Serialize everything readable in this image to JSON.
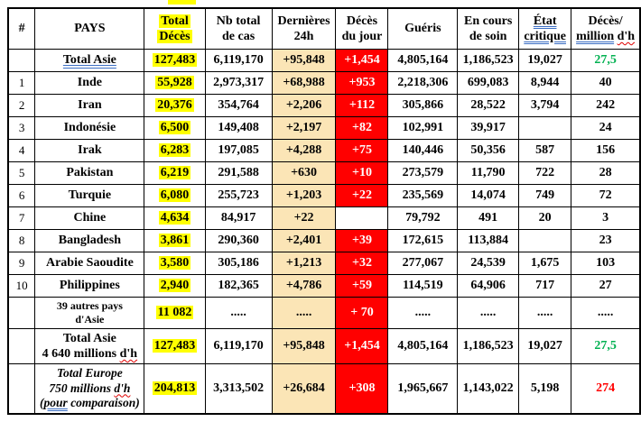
{
  "colors": {
    "highlight_yellow": "#FFFF00",
    "last24h_cell_cream": "#FBE5B6",
    "deaths_today_cell_red": "#FF0000",
    "deaths_today_text": "#FFFFFF",
    "green_text": "#00B050",
    "red_text": "#FF0000",
    "grammar_underline_blue": "#3C6FC4",
    "spellcheck_underline_red": "#E00000",
    "border": "#000000",
    "background": "#FFFFFF"
  },
  "artifact": {
    "description": "small yellow highlight fragment cropped above table top border",
    "color": "#FFFF00"
  },
  "table": {
    "columns": [
      {
        "key": "num",
        "header": [
          [
            {
              "t": "#"
            }
          ]
        ]
      },
      {
        "key": "pays",
        "header": [
          [
            {
              "t": "PAYS"
            }
          ]
        ]
      },
      {
        "key": "total",
        "header": [
          [
            {
              "t": "Total",
              "hl": true
            }
          ],
          [
            {
              "t": "Décès",
              "hl": true
            }
          ]
        ]
      },
      {
        "key": "cas",
        "header": [
          [
            {
              "t": "Nb total"
            }
          ],
          [
            {
              "t": "de cas"
            }
          ]
        ]
      },
      {
        "key": "h24",
        "header": [
          [
            {
              "t": "Dernières"
            }
          ],
          [
            {
              "t": "24h"
            }
          ]
        ]
      },
      {
        "key": "jour",
        "header": [
          [
            {
              "t": "Décès"
            }
          ],
          [
            {
              "t": "du jour"
            }
          ]
        ]
      },
      {
        "key": "gueris",
        "header": [
          [
            {
              "t": "Guéris"
            }
          ]
        ]
      },
      {
        "key": "soin",
        "header": [
          [
            {
              "t": "En cours"
            }
          ],
          [
            {
              "t": "de soin"
            }
          ]
        ]
      },
      {
        "key": "crit",
        "header": [
          [
            {
              "t": "État",
              "m": "blue"
            }
          ],
          [
            {
              "t": "critique",
              "m": "blue"
            }
          ]
        ]
      },
      {
        "key": "pm",
        "header": [
          [
            {
              "t": "Décès/"
            }
          ],
          [
            {
              "t": "million",
              "m": "blue"
            },
            {
              "t": " "
            },
            {
              "t": "d'h",
              "m": "red"
            }
          ]
        ]
      }
    ],
    "rows": [
      {
        "kind": "summary",
        "num": "",
        "pays": [
          [
            {
              "t": "Total Asie",
              "m": "blue"
            }
          ]
        ],
        "total": "127,483",
        "cas": "6,119,170",
        "h24": "+95,848",
        "jour": "+1,454",
        "jour_red": true,
        "gueris": "4,805,164",
        "soin": "1,186,523",
        "crit": "19,027",
        "pm": "27,5",
        "pm_color": "green"
      },
      {
        "kind": "country",
        "num": "1",
        "pays": [
          [
            {
              "t": "Inde"
            }
          ]
        ],
        "total": "55,928",
        "cas": "2,973,317",
        "h24": "+68,988",
        "jour": "+953",
        "jour_red": true,
        "gueris": "2,218,306",
        "soin": "699,083",
        "crit": "8,944",
        "pm": "40",
        "pm_color": ""
      },
      {
        "kind": "country",
        "num": "2",
        "pays": [
          [
            {
              "t": "Iran"
            }
          ]
        ],
        "total": "20,376",
        "cas": "354,764",
        "h24": "+2,206",
        "jour": "+112",
        "jour_red": true,
        "gueris": "305,866",
        "soin": "28,522",
        "crit": "3,794",
        "pm": "242",
        "pm_color": ""
      },
      {
        "kind": "country",
        "num": "3",
        "pays": [
          [
            {
              "t": "Indonésie"
            }
          ]
        ],
        "total": "6,500",
        "cas": "149,408",
        "h24": "+2,197",
        "jour": "+82",
        "jour_red": true,
        "gueris": "102,991",
        "soin": "39,917",
        "crit": "",
        "pm": "24",
        "pm_color": ""
      },
      {
        "kind": "country",
        "num": "4",
        "pays": [
          [
            {
              "t": "Irak"
            }
          ]
        ],
        "total": "6,283",
        "cas": "197,085",
        "h24": "+4,288",
        "jour": "+75",
        "jour_red": true,
        "gueris": "140,446",
        "soin": "50,356",
        "crit": "587",
        "pm": "156",
        "pm_color": ""
      },
      {
        "kind": "country",
        "num": "5",
        "pays": [
          [
            {
              "t": "Pakistan"
            }
          ]
        ],
        "total": "6,219",
        "cas": "291,588",
        "h24": "+630",
        "jour": "+10",
        "jour_red": true,
        "gueris": "273,579",
        "soin": "11,790",
        "crit": "722",
        "pm": "28",
        "pm_color": ""
      },
      {
        "kind": "country",
        "num": "6",
        "pays": [
          [
            {
              "t": "Turquie"
            }
          ]
        ],
        "total": "6,080",
        "cas": "255,723",
        "h24": "+1,203",
        "jour": "+22",
        "jour_red": true,
        "gueris": "235,569",
        "soin": "14,074",
        "crit": "749",
        "pm": "72",
        "pm_color": ""
      },
      {
        "kind": "country",
        "num": "7",
        "pays": [
          [
            {
              "t": "Chine"
            }
          ]
        ],
        "total": "4,634",
        "cas": "84,917",
        "h24": "+22",
        "jour": "",
        "jour_red": false,
        "gueris": "79,792",
        "soin": "491",
        "crit": "20",
        "pm": "3",
        "pm_color": ""
      },
      {
        "kind": "country",
        "num": "8",
        "pays": [
          [
            {
              "t": "Bangladesh"
            }
          ]
        ],
        "total": "3,861",
        "cas": "290,360",
        "h24": "+2,401",
        "jour": "+39",
        "jour_red": true,
        "gueris": "172,615",
        "soin": "113,884",
        "crit": "",
        "pm": "23",
        "pm_color": ""
      },
      {
        "kind": "country",
        "num": "9",
        "pays": [
          [
            {
              "t": "Arabie Saoudite"
            }
          ]
        ],
        "total": "3,580",
        "cas": "305,186",
        "h24": "+1,213",
        "jour": "+32",
        "jour_red": true,
        "gueris": "277,067",
        "soin": "24,539",
        "crit": "1,675",
        "pm": "103",
        "pm_color": ""
      },
      {
        "kind": "country",
        "num": "10",
        "pays": [
          [
            {
              "t": "Philippines"
            }
          ]
        ],
        "total": "2,940",
        "cas": "182,365",
        "h24": "+4,786",
        "jour": "+59",
        "jour_red": true,
        "gueris": "114,519",
        "soin": "64,906",
        "crit": "717",
        "pm": "27",
        "pm_color": ""
      },
      {
        "kind": "others",
        "num": "",
        "pays": [
          [
            {
              "t": "39 autres pays"
            }
          ],
          [
            {
              "t": "d'Asie"
            }
          ]
        ],
        "total": "11 082",
        "cas": ".....",
        "h24": ".....",
        "jour": "+ 70",
        "jour_red": true,
        "gueris": ".....",
        "soin": ".....",
        "crit": ".....",
        "pm": ".....",
        "pm_color": ""
      },
      {
        "kind": "total-asia",
        "num": "",
        "pays": [
          [
            {
              "t": "Total Asie"
            }
          ],
          [
            {
              "t": "4 640 millions "
            },
            {
              "t": "d'h",
              "m": "red"
            }
          ]
        ],
        "total": "127,483",
        "cas": "6,119,170",
        "h24": "+95,848",
        "jour": "+1,454",
        "jour_red": true,
        "gueris": "4,805,164",
        "soin": "1,186,523",
        "crit": "19,027",
        "pm": "27,5",
        "pm_color": "green"
      },
      {
        "kind": "total-europe",
        "num": "",
        "pays": [
          [
            {
              "t": "Total Europe"
            }
          ],
          [
            {
              "t": "750 millions "
            },
            {
              "t": "d'h",
              "m": "red"
            }
          ],
          [
            {
              "t": "("
            },
            {
              "t": "pour",
              "m": "blue"
            },
            {
              "t": " comparaison)"
            }
          ]
        ],
        "total": "204,813",
        "cas": "3,313,502",
        "h24": "+26,684",
        "jour": "+308",
        "jour_red": true,
        "gueris": "1,965,667",
        "soin": "1,143,022",
        "crit": "5,198",
        "pm": "274",
        "pm_color": "red"
      }
    ]
  }
}
